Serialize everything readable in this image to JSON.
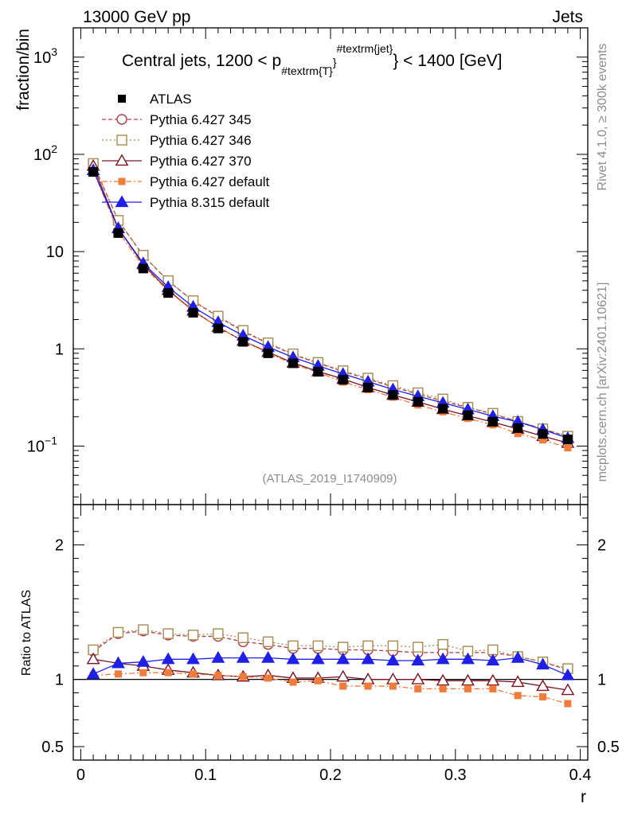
{
  "header": {
    "left": "13000 GeV pp",
    "right": "Jets"
  },
  "side_labels": {
    "rivet": "Rivet 4.1.0, ≥ 300k events",
    "mcplots": "mcplots.cern.ch [arXiv:2401.10621]"
  },
  "chart_data": {
    "type": "line",
    "title_main": "Central jets, 1200 < p",
    "title_sub": "#textrm{T}",
    "title_sup": "#textrm{jet}",
    "title_tail": "} < 1400 [GeV]",
    "title_open": "}",
    "watermark": "(ATLAS_2019_I1740909)",
    "xlabel": "r",
    "ylabel_top": "fraction/bin",
    "ylabel_bottom": "Ratio to ATLAS",
    "xlim": [
      -0.006,
      0.406
    ],
    "ylim_top": [
      0.025,
      2000
    ],
    "ylim_bottom": [
      0.4,
      2.3
    ],
    "x_ticks": [
      "0",
      "0.1",
      "0.2",
      "0.3",
      "0.4"
    ],
    "y_ticks_top": [
      {
        "base": "10",
        "exp": "−1",
        "value": 0.1
      },
      {
        "base": "1",
        "exp": "",
        "value": 1
      },
      {
        "base": "10",
        "exp": "",
        "value": 10
      },
      {
        "base": "10",
        "exp": "2",
        "value": 100
      },
      {
        "base": "10",
        "exp": "3",
        "value": 1000
      }
    ],
    "y_ticks_bottom": [
      "0.5",
      "1",
      "2"
    ],
    "x": [
      0.01,
      0.03,
      0.05,
      0.07,
      0.09,
      0.11,
      0.13,
      0.15,
      0.17,
      0.19,
      0.21,
      0.23,
      0.25,
      0.27,
      0.29,
      0.31,
      0.33,
      0.35,
      0.37,
      0.39
    ],
    "data": {
      "name": "ATLAS",
      "values": [
        66,
        15.5,
        6.7,
        3.75,
        2.35,
        1.62,
        1.18,
        0.9,
        0.71,
        0.58,
        0.48,
        0.4,
        0.335,
        0.285,
        0.242,
        0.207,
        0.178,
        0.153,
        0.133,
        0.117
      ]
    },
    "series": [
      {
        "name": "Pythia 6.427 345",
        "color": "#b03a48",
        "marker": "circle-open",
        "dash": "5,3",
        "ratio": [
          1.21,
          1.34,
          1.36,
          1.33,
          1.32,
          1.32,
          1.28,
          1.26,
          1.23,
          1.23,
          1.22,
          1.22,
          1.21,
          1.2,
          1.2,
          1.2,
          1.2,
          1.17,
          1.13,
          1.07
        ]
      },
      {
        "name": "Pythia 6.427 346",
        "color": "#a68a50",
        "marker": "square-open",
        "dash": "2,3",
        "ratio": [
          1.22,
          1.35,
          1.37,
          1.34,
          1.33,
          1.34,
          1.31,
          1.28,
          1.25,
          1.25,
          1.24,
          1.25,
          1.25,
          1.24,
          1.26,
          1.21,
          1.22,
          1.17,
          1.13,
          1.08
        ]
      },
      {
        "name": "Pythia 6.427 370",
        "color": "#7a1420",
        "marker": "triangle-open",
        "dash": "",
        "ratio": [
          1.15,
          1.12,
          1.1,
          1.07,
          1.05,
          1.03,
          1.02,
          1.03,
          1.01,
          1.01,
          1.02,
          1.0,
          1.0,
          1.0,
          0.99,
          0.99,
          0.99,
          0.98,
          0.95,
          0.92
        ]
      },
      {
        "name": "Pythia 6.427 default",
        "color": "#f07c3c",
        "marker": "square-filled",
        "dash": "7,3,2,3",
        "ratio": [
          1.03,
          1.04,
          1.05,
          1.05,
          1.04,
          1.03,
          1.02,
          1.01,
          0.98,
          0.99,
          0.95,
          0.95,
          0.95,
          0.93,
          0.93,
          0.93,
          0.93,
          0.88,
          0.87,
          0.82
        ]
      },
      {
        "name": "Pythia 8.315 default",
        "color": "#1f1fe6",
        "marker": "triangle-filled",
        "dash": "",
        "ratio": [
          1.04,
          1.12,
          1.13,
          1.15,
          1.15,
          1.16,
          1.16,
          1.16,
          1.15,
          1.15,
          1.15,
          1.15,
          1.14,
          1.14,
          1.15,
          1.15,
          1.14,
          1.16,
          1.11,
          1.03
        ]
      }
    ]
  }
}
